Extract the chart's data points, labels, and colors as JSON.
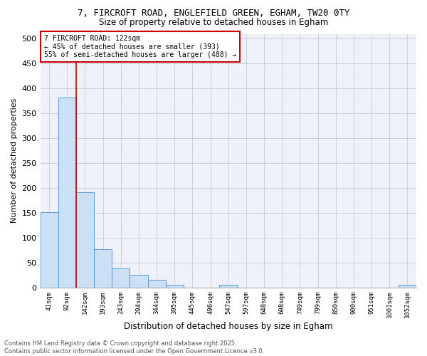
{
  "title_line1": "7, FIRCROFT ROAD, ENGLEFIELD GREEN, EGHAM, TW20 0TY",
  "title_line2": "Size of property relative to detached houses in Egham",
  "xlabel": "Distribution of detached houses by size in Egham",
  "ylabel": "Number of detached properties",
  "bar_color": "#cce0f5",
  "bar_edge_color": "#5b9bd5",
  "categories": [
    "41sqm",
    "92sqm",
    "142sqm",
    "193sqm",
    "243sqm",
    "294sqm",
    "344sqm",
    "395sqm",
    "445sqm",
    "496sqm",
    "547sqm",
    "597sqm",
    "648sqm",
    "698sqm",
    "749sqm",
    "799sqm",
    "850sqm",
    "900sqm",
    "951sqm",
    "1001sqm",
    "1052sqm"
  ],
  "values": [
    152,
    382,
    192,
    77,
    38,
    25,
    16,
    6,
    0,
    0,
    5,
    0,
    0,
    0,
    0,
    0,
    0,
    0,
    0,
    0,
    5
  ],
  "property_label": "7 FIRCROFT ROAD: 122sqm",
  "annotation_line1": "← 45% of detached houses are smaller (393)",
  "annotation_line2": "55% of semi-detached houses are larger (488) →",
  "vline_color": "#cc0000",
  "vline_x": 1.5,
  "ylim": [
    0,
    510
  ],
  "yticks": [
    0,
    50,
    100,
    150,
    200,
    250,
    300,
    350,
    400,
    450,
    500
  ],
  "ytick_labels": [
    "0",
    "50",
    "100",
    "150",
    "200",
    "250",
    "300",
    "350",
    "400",
    "450",
    "500"
  ],
  "footer_line1": "Contains HM Land Registry data © Crown copyright and database right 2025.",
  "footer_line2": "Contains public sector information licensed under the Open Government Licence v3.0.",
  "bg_color": "#eef2f8",
  "annotation_box_color": "#cc0000",
  "grid_color": "#c8d0dc",
  "title1_fontsize": 9,
  "title2_fontsize": 9
}
